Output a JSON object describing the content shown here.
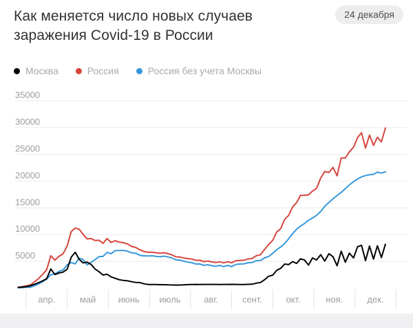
{
  "header": {
    "title": "Как меняется число новых случаев заражения Covid-19 в России",
    "date_badge": "24 декабря"
  },
  "legend": [
    {
      "label": "Москва",
      "color": "#000000"
    },
    {
      "label": "Россия",
      "color": "#d7453c"
    },
    {
      "label": "Россия без учета Москвы",
      "color": "#3598db"
    }
  ],
  "colors": {
    "gridline": "#ebebeb",
    "month_separator": "#e3e3e3",
    "axis_text": "#9d9d9d",
    "legend_text": "#a9a9a9",
    "badge_bg": "#ededed",
    "badge_text": "#4e4e4e",
    "page_strip": "#f0f0f2"
  },
  "chart_data": {
    "type": "line",
    "title": "Как меняется число новых случаев заражения Covid-19 в России",
    "as_of": "24 декабря",
    "legend_position": "top",
    "grid": true,
    "xlabel": "",
    "ylabel": "",
    "x_axis": {
      "unit": "month",
      "tick_labels": [
        "апр.",
        "май",
        "июнь",
        "июль",
        "авг.",
        "сент.",
        "окт.",
        "ноя.",
        "дек."
      ]
    },
    "y_axis": {
      "ticks": [
        5000,
        10000,
        15000,
        20000,
        25000,
        30000,
        35000
      ],
      "range": [
        0,
        36000
      ]
    },
    "x_days_from_apr1": [
      -6,
      -3,
      0,
      3,
      6,
      9,
      12,
      15,
      18,
      21,
      24,
      27,
      30,
      33,
      36,
      39,
      42,
      45,
      48,
      51,
      54,
      57,
      60,
      63,
      66,
      69,
      72,
      75,
      78,
      81,
      84,
      87,
      90,
      93,
      96,
      99,
      102,
      105,
      108,
      111,
      114,
      117,
      120,
      123,
      126,
      129,
      132,
      135,
      138,
      141,
      144,
      147,
      150,
      153,
      156,
      159,
      162,
      165,
      168,
      171,
      174,
      177,
      180,
      183,
      186,
      189,
      192,
      195,
      198,
      201,
      204,
      207,
      210,
      213,
      216,
      219,
      222,
      225,
      228,
      231,
      234,
      237,
      240,
      243,
      246,
      249,
      252,
      255,
      258,
      261,
      264,
      267
    ],
    "series": [
      {
        "name": "Москва",
        "color": "#000000",
        "values": [
          120,
          197,
          267,
          434,
          697,
          1030,
          1355,
          1760,
          3570,
          2548,
          2830,
          2999,
          3561,
          5795,
          6703,
          5392,
          4712,
          4855,
          4427,
          3577,
          3060,
          2440,
          2595,
          2095,
          1842,
          1572,
          1436,
          1357,
          1195,
          1068,
          1036,
          809,
          677,
          680,
          674,
          645,
          637,
          600,
          585,
          561,
          578,
          608,
          655,
          665,
          690,
          687,
          689,
          693,
          692,
          692,
          683,
          688,
          695,
          706,
          690,
          675,
          682,
          712,
          730,
          930,
          1050,
          1560,
          2217,
          2424,
          3323,
          3701,
          4501,
          4395,
          4946,
          4610,
          5478,
          5261,
          4312,
          5638,
          5255,
          6253,
          5050,
          6425,
          5874,
          4174,
          6902,
          4837,
          6524,
          5645,
          7750,
          7993,
          5145,
          7863,
          5418,
          7918,
          5707,
          8203
        ]
      },
      {
        "name": "Россия",
        "color": "#d7453c",
        "values": [
          182,
          270,
          440,
          582,
          1154,
          1786,
          2558,
          3448,
          6060,
          5236,
          5966,
          6411,
          7933,
          10581,
          11231,
          11012,
          10028,
          9200,
          9263,
          8894,
          8946,
          8371,
          9268,
          8536,
          8855,
          8595,
          8487,
          8246,
          7790,
          7600,
          7176,
          6852,
          6693,
          6718,
          6611,
          6509,
          6615,
          6422,
          6234,
          5842,
          5811,
          5635,
          5509,
          5427,
          5204,
          5212,
          4945,
          5065,
          4892,
          4785,
          4921,
          4711,
          4941,
          4729,
          5110,
          5185,
          5218,
          5449,
          5529,
          6065,
          6215,
          7212,
          8135,
          8945,
          10499,
          11115,
          12846,
          13592,
          15150,
          15982,
          17340,
          17347,
          17425,
          18140,
          18648,
          20582,
          21798,
          21608,
          22572,
          20985,
          24318,
          24326,
          25487,
          26338,
          28145,
          29039,
          26190,
          28585,
          26689,
          28214,
          27328,
          29935
        ]
      },
      {
        "name": "Россия без учета Москвы",
        "color": "#3598db",
        "values": [
          62,
          73,
          173,
          148,
          457,
          756,
          1203,
          1688,
          2490,
          2688,
          3136,
          3412,
          4372,
          4786,
          4528,
          5620,
          5316,
          4345,
          4836,
          5317,
          5886,
          5931,
          6673,
          6441,
          7013,
          7023,
          7051,
          6889,
          6595,
          6532,
          6140,
          6043,
          6016,
          6038,
          5937,
          5864,
          5978,
          5822,
          5649,
          5281,
          5233,
          5027,
          4854,
          4762,
          4514,
          4525,
          4256,
          4372,
          4200,
          4093,
          4238,
          4023,
          4246,
          4023,
          4420,
          4510,
          4536,
          4737,
          4799,
          5135,
          5165,
          5652,
          5918,
          6521,
          7176,
          7700,
          8345,
          9197,
          10204,
          11000,
          11600,
          12086,
          12700,
          13100,
          13600,
          14329,
          15300,
          16000,
          16700,
          17300,
          17900,
          18600,
          19300,
          19900,
          20400,
          20800,
          21045,
          21200,
          21271,
          21700,
          21500,
          21732
        ]
      }
    ]
  }
}
